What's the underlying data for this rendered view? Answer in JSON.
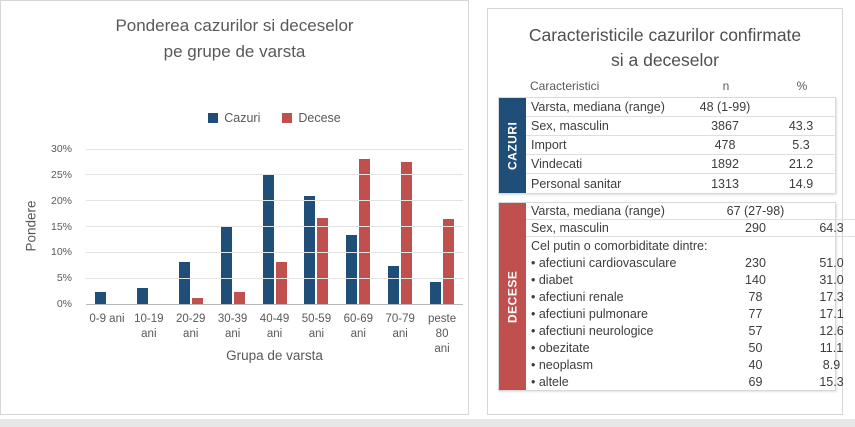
{
  "chart_data": [
    {
      "type": "bar",
      "title": "Ponderea cazurilor si deceselor pe grupe de varsta",
      "title_lines": [
        "Ponderea cazurilor si deceselor",
        "pe grupe de varsta"
      ],
      "categories": [
        "0-9 ani",
        "10-19 ani",
        "20-29 ani",
        "30-39 ani",
        "40-49 ani",
        "50-59 ani",
        "60-69 ani",
        "70-79 ani",
        "peste 80 ani"
      ],
      "x_tick_lines": [
        [
          "0-9 ani",
          ""
        ],
        [
          "10-19",
          "ani"
        ],
        [
          "20-29",
          "ani"
        ],
        [
          "30-39",
          "ani"
        ],
        [
          "40-49",
          "ani"
        ],
        [
          "50-59",
          "ani"
        ],
        [
          "60-69",
          "ani"
        ],
        [
          "70-79",
          "ani"
        ],
        [
          "peste 80",
          "ani"
        ]
      ],
      "series": [
        {
          "name": "Cazuri",
          "color": "#1f4e79",
          "values": [
            2.4,
            3.2,
            8.2,
            15.2,
            25.1,
            21.0,
            13.3,
            7.4,
            4.2
          ]
        },
        {
          "name": "Decese",
          "color": "#c0504d",
          "values": [
            0,
            0,
            1.1,
            2.4,
            8.1,
            16.6,
            28.0,
            27.4,
            16.5
          ]
        }
      ],
      "xlabel": "Grupa de varsta",
      "ylabel": "Pondere",
      "ylim": [
        0,
        30
      ],
      "ytick_step": 5,
      "ytick_suffix": "%",
      "grid": "horizontal",
      "legend_position": "top-center"
    },
    {
      "type": "table",
      "title": "Caracteristicile cazurilor confirmate si a deceselor",
      "title_lines": [
        "Caracteristicile cazurilor confirmate",
        "si a deceselor"
      ],
      "columns": [
        "Caracteristici",
        "n",
        "%"
      ],
      "sections": [
        {
          "label": "CAZURI",
          "color": "#1f4e79",
          "rows": [
            {
              "name": "Varsta, mediana (range)",
              "n": "48 (1-99)",
              "pct": ""
            },
            {
              "name": "Sex, masculin",
              "n": "3867",
              "pct": "43.3"
            },
            {
              "name": "Import",
              "n": "478",
              "pct": "5.3"
            },
            {
              "name": "Vindecati",
              "n": "1892",
              "pct": "21.2"
            },
            {
              "name": "Personal sanitar",
              "n": "1313",
              "pct": "14.9"
            }
          ]
        },
        {
          "label": "DECESE",
          "color": "#c0504d",
          "rows": [
            {
              "name": "Varsta, mediana (range)",
              "n": "67 (27-98)",
              "pct": ""
            },
            {
              "name": "Sex, masculin",
              "n": "290",
              "pct": "64.3"
            },
            {
              "name": "Cel putin o comorbiditate dintre:",
              "n": "",
              "pct": ""
            },
            {
              "name": "• afectiuni cardiovasculare",
              "n": "230",
              "pct": "51.0"
            },
            {
              "name": "• diabet",
              "n": "140",
              "pct": "31.0"
            },
            {
              "name": "• afectiuni renale",
              "n": "78",
              "pct": "17.3"
            },
            {
              "name": "• afectiuni pulmonare",
              "n": "77",
              "pct": "17.1"
            },
            {
              "name": "• afectiuni neurologice",
              "n": "57",
              "pct": "12.6"
            },
            {
              "name": "• obezitate",
              "n": "50",
              "pct": "11.1"
            },
            {
              "name": "• neoplasm",
              "n": "40",
              "pct": "8.9"
            },
            {
              "name": "• altele",
              "n": "69",
              "pct": "15.3"
            }
          ]
        }
      ]
    }
  ]
}
